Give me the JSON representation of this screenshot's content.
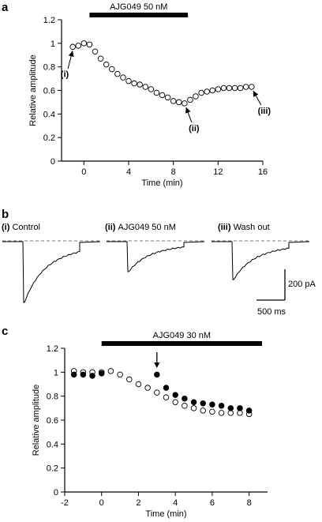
{
  "panels": {
    "a": {
      "label": "a"
    },
    "b": {
      "label": "b",
      "scale_y": "200 pA",
      "scale_x": "500 ms"
    },
    "c": {
      "label": "c"
    }
  },
  "chart_data": [
    {
      "id": "a",
      "type": "scatter",
      "xlabel": "Time (min)",
      "ylabel": "Relative amplitude",
      "xlim": [
        -2,
        16
      ],
      "ylim": [
        0,
        1.2
      ],
      "xticks": [
        0,
        4,
        8,
        12,
        16
      ],
      "yticks": [
        0,
        0.2,
        0.4,
        0.6,
        0.8,
        1,
        1.2
      ],
      "drug_bar": {
        "label": "AJG049 50 nM",
        "start": 0.5,
        "end": 9.3
      },
      "series": [
        {
          "marker": "open",
          "x": [
            -1.0,
            -0.5,
            0.0,
            0.5,
            1.0,
            1.5,
            2.0,
            2.5,
            3.0,
            3.5,
            4.0,
            4.5,
            5.0,
            5.5,
            6.0,
            6.5,
            7.0,
            7.5,
            8.0,
            8.5,
            9.0,
            9.5,
            10.0,
            10.5,
            11.0,
            11.5,
            12.0,
            12.5,
            13.0,
            13.5,
            14.0,
            14.5,
            15.0
          ],
          "y": [
            0.97,
            0.98,
            1.0,
            0.99,
            0.93,
            0.87,
            0.82,
            0.78,
            0.74,
            0.71,
            0.68,
            0.66,
            0.65,
            0.63,
            0.61,
            0.58,
            0.56,
            0.54,
            0.51,
            0.5,
            0.49,
            0.52,
            0.55,
            0.58,
            0.59,
            0.6,
            0.61,
            0.62,
            0.62,
            0.62,
            0.62,
            0.63,
            0.63
          ]
        }
      ],
      "annotations": [
        {
          "text": "(i)",
          "x": -0.8,
          "y": 0.97
        },
        {
          "text": "(ii)",
          "x": 9.0,
          "y": 0.49
        },
        {
          "text": "(iii)",
          "x": 15.0,
          "y": 0.63
        }
      ]
    },
    {
      "id": "b",
      "type": "line",
      "traces": [
        {
          "label": "(i) Control",
          "amplitude": 1.0
        },
        {
          "label": "(ii) AJG049 50 nM",
          "amplitude": 0.5
        },
        {
          "label": "(iii) Wash out",
          "amplitude": 0.63
        }
      ]
    },
    {
      "id": "c",
      "type": "scatter",
      "xlabel": "Time (min)",
      "ylabel": "Relative amplitude",
      "xlim": [
        -2,
        9
      ],
      "ylim": [
        0,
        1.2
      ],
      "xticks": [
        -2,
        0,
        2,
        4,
        6,
        8
      ],
      "yticks": [
        0,
        0.2,
        0.4,
        0.6,
        0.8,
        1,
        1.2
      ],
      "drug_bar": {
        "label": "AJG049  30 nM",
        "start": 0.0,
        "end": 8.7
      },
      "arrow_x": 3.0,
      "series": [
        {
          "marker": "open",
          "x": [
            -1.5,
            -1.0,
            -0.5,
            0.0,
            0.5,
            1.0,
            1.5,
            2.0,
            2.5,
            3.0,
            3.5,
            4.0,
            4.5,
            5.0,
            5.5,
            6.0,
            6.5,
            7.0,
            7.5,
            8.0
          ],
          "y": [
            1.01,
            1.0,
            1.0,
            1.0,
            1.01,
            0.98,
            0.94,
            0.9,
            0.87,
            0.83,
            0.79,
            0.75,
            0.72,
            0.7,
            0.68,
            0.67,
            0.66,
            0.66,
            0.66,
            0.65
          ]
        },
        {
          "marker": "filled",
          "x": [
            -1.5,
            -1.0,
            -0.5,
            0.0,
            3.0,
            3.5,
            4.0,
            4.5,
            5.0,
            5.5,
            6.0,
            6.5,
            7.0,
            7.5,
            8.0
          ],
          "y": [
            0.98,
            0.98,
            0.97,
            0.99,
            0.98,
            0.87,
            0.81,
            0.78,
            0.75,
            0.74,
            0.73,
            0.72,
            0.7,
            0.7,
            0.68
          ]
        }
      ]
    }
  ]
}
